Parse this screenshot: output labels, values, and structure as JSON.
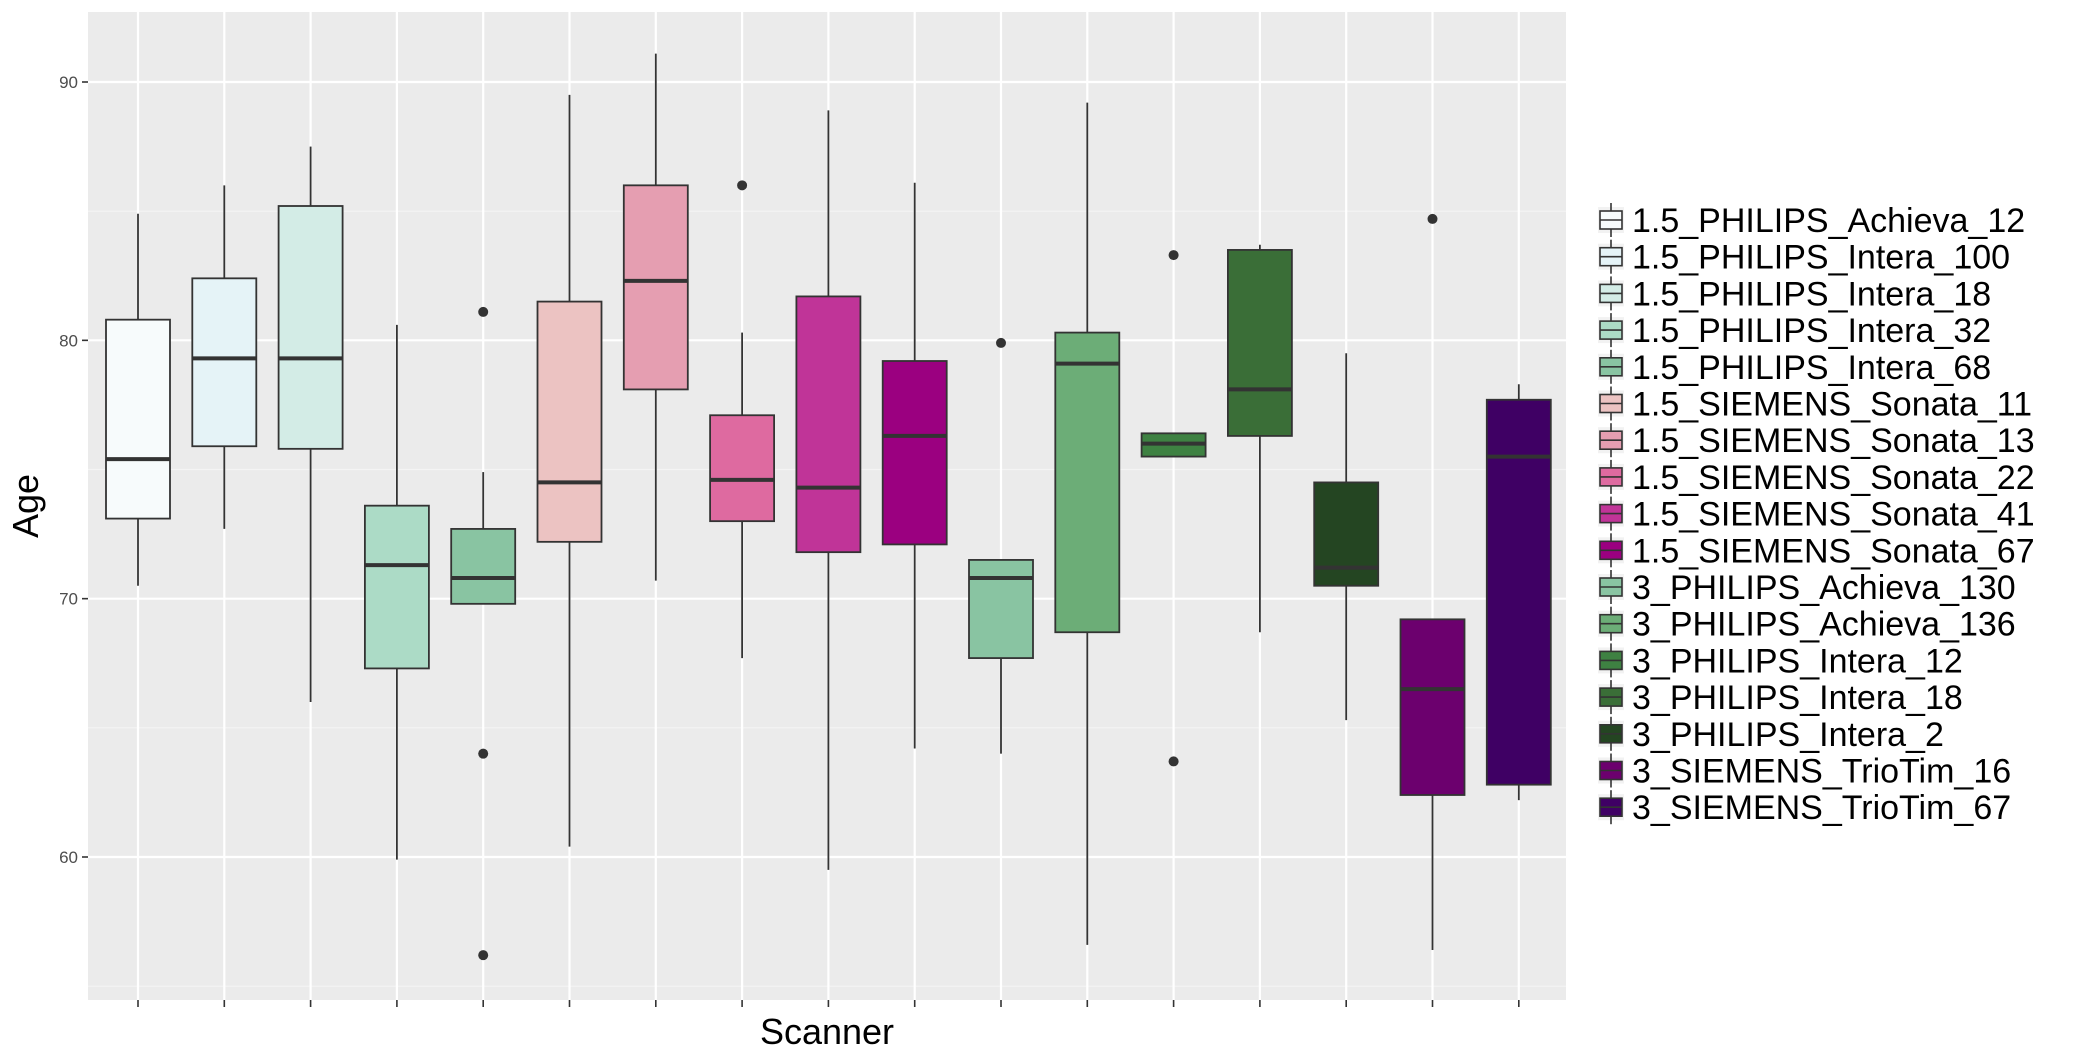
{
  "chart_data": {
    "type": "boxplot",
    "title": "",
    "xlabel": "Scanner",
    "ylabel": "Age",
    "ylim": [
      54.8,
      92.7
    ],
    "yticks": [
      60,
      70,
      80,
      90
    ],
    "grid": true,
    "legend_position": "right",
    "series": [
      {
        "name": "1.5_PHILIPS_Achieva_12",
        "color": "#f7fbfc",
        "whisker_low": 70.5,
        "q1": 73.1,
        "median": 75.4,
        "q3": 80.8,
        "whisker_high": 84.9,
        "outliers": []
      },
      {
        "name": "1.5_PHILIPS_Intera_100",
        "color": "#e5f3f7",
        "whisker_low": 72.7,
        "q1": 75.9,
        "median": 79.3,
        "q3": 82.4,
        "whisker_high": 86.0,
        "outliers": []
      },
      {
        "name": "1.5_PHILIPS_Intera_18",
        "color": "#d3ece6",
        "whisker_low": 66.0,
        "q1": 75.8,
        "median": 79.3,
        "q3": 85.2,
        "whisker_high": 87.5,
        "outliers": []
      },
      {
        "name": "1.5_PHILIPS_Intera_32",
        "color": "#acdbc6",
        "whisker_low": 59.9,
        "q1": 67.3,
        "median": 71.3,
        "q3": 73.6,
        "whisker_high": 80.6,
        "outliers": []
      },
      {
        "name": "1.5_PHILIPS_Intera_68",
        "color": "#89c4a2",
        "whisker_low": 69.8,
        "q1": 69.8,
        "median": 70.8,
        "q3": 72.7,
        "whisker_high": 74.9,
        "outliers": [
          81.1,
          64.0,
          56.2
        ]
      },
      {
        "name": "1.5_SIEMENS_Sonata_11",
        "color": "#ecc3c2",
        "whisker_low": 60.4,
        "q1": 72.2,
        "median": 74.5,
        "q3": 81.5,
        "whisker_high": 89.5,
        "outliers": []
      },
      {
        "name": "1.5_SIEMENS_Sonata_13",
        "color": "#e59eb1",
        "whisker_low": 70.7,
        "q1": 78.1,
        "median": 82.3,
        "q3": 86.0,
        "whisker_high": 91.1,
        "outliers": []
      },
      {
        "name": "1.5_SIEMENS_Sonata_22",
        "color": "#de6aa0",
        "whisker_low": 67.7,
        "q1": 73.0,
        "median": 74.6,
        "q3": 77.1,
        "whisker_high": 80.3,
        "outliers": [
          86.0
        ]
      },
      {
        "name": "1.5_SIEMENS_Sonata_41",
        "color": "#c03498",
        "whisker_low": 59.5,
        "q1": 71.8,
        "median": 74.3,
        "q3": 81.7,
        "whisker_high": 88.9,
        "outliers": []
      },
      {
        "name": "1.5_SIEMENS_Sonata_67",
        "color": "#9b0080",
        "whisker_low": 64.2,
        "q1": 72.1,
        "median": 76.3,
        "q3": 79.2,
        "whisker_high": 86.1,
        "outliers": []
      },
      {
        "name": "3_PHILIPS_Achieva_130",
        "color": "#89c4a2",
        "whisker_low": 64.0,
        "q1": 67.7,
        "median": 70.8,
        "q3": 71.5,
        "whisker_high": 71.5,
        "outliers": [
          79.9
        ]
      },
      {
        "name": "3_PHILIPS_Achieva_136",
        "color": "#6cad77",
        "whisker_low": 56.6,
        "q1": 68.7,
        "median": 79.1,
        "q3": 80.3,
        "whisker_high": 89.2,
        "outliers": []
      },
      {
        "name": "3_PHILIPS_Intera_12",
        "color": "#3e8142",
        "whisker_low": 75.5,
        "q1": 75.5,
        "median": 76.0,
        "q3": 76.4,
        "whisker_high": 76.4,
        "outliers": [
          83.3,
          63.7
        ]
      },
      {
        "name": "3_PHILIPS_Intera_18",
        "color": "#3a6e37",
        "whisker_low": 68.7,
        "q1": 76.3,
        "median": 78.1,
        "q3": 83.5,
        "whisker_high": 83.7,
        "outliers": []
      },
      {
        "name": "3_PHILIPS_Intera_2",
        "color": "#244522",
        "whisker_low": 65.3,
        "q1": 70.5,
        "median": 71.2,
        "q3": 74.5,
        "whisker_high": 79.5,
        "outliers": []
      },
      {
        "name": "3_SIEMENS_TrioTim_16",
        "color": "#6c006e",
        "whisker_low": 56.4,
        "q1": 62.4,
        "median": 66.5,
        "q3": 69.2,
        "whisker_high": 69.2,
        "outliers": [
          84.7
        ]
      },
      {
        "name": "3_SIEMENS_TrioTim_67",
        "color": "#3f0064",
        "whisker_low": 62.2,
        "q1": 62.8,
        "median": 75.5,
        "q3": 77.7,
        "whisker_high": 78.3,
        "outliers": []
      }
    ]
  }
}
